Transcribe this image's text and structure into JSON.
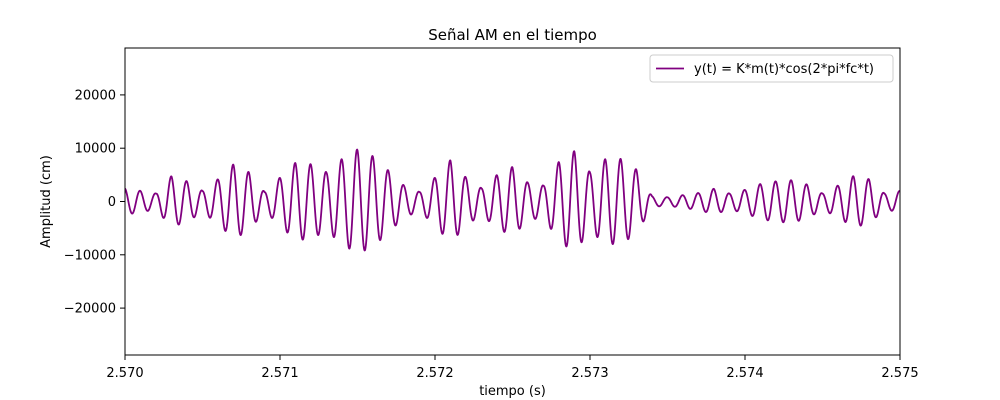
{
  "chart_data": {
    "type": "line",
    "title": "Señal AM en el tiempo",
    "xlabel": "tiempo (s)",
    "ylabel": "Amplitud (cm)",
    "xlim": [
      2.57,
      2.575
    ],
    "ylim": [
      -28800,
      28800
    ],
    "xticks": [
      "2.570",
      "2.571",
      "2.572",
      "2.573",
      "2.574",
      "2.575"
    ],
    "yticks": [
      "−20000",
      "−10000",
      "0",
      "10000",
      "20000"
    ],
    "ytick_values": [
      -20000,
      -10000,
      0,
      10000,
      20000
    ],
    "grid": false,
    "legend_position": "top-right",
    "series": [
      {
        "name": "y(t) = K*m(t)*cos(2*pi*fc*t)",
        "color": "#800080",
        "carrier_cycles_per_ms": 10,
        "envelope": {
          "x": [
            2.57,
            2.5702,
            2.5703,
            2.5704,
            2.5705,
            2.5706,
            2.5707,
            2.5708,
            2.5709,
            2.571,
            2.5711,
            2.5712,
            2.5713,
            2.5714,
            2.5715,
            2.5716,
            2.5717,
            2.5718,
            2.5719,
            2.572,
            2.5721,
            2.5722,
            2.5723,
            2.5724,
            2.5725,
            2.5726,
            2.5727,
            2.5728,
            2.5729,
            2.573,
            2.5731,
            2.5732,
            2.5733,
            2.5734,
            2.5735,
            2.5736,
            2.5737,
            2.5738,
            2.5739,
            2.574,
            2.5741,
            2.5742,
            2.5743,
            2.5744,
            2.5745,
            2.5746,
            2.5747,
            2.5748,
            2.5749,
            2.575
          ],
          "y": [
            2500,
            1500,
            4800,
            3800,
            2000,
            4200,
            7000,
            5500,
            1800,
            4500,
            7300,
            7000,
            5500,
            8000,
            9800,
            8500,
            5800,
            3000,
            1800,
            4500,
            7800,
            4500,
            2500,
            5000,
            6500,
            3500,
            3000,
            7500,
            9500,
            5500,
            8000,
            8000,
            6000,
            1000,
            800,
            1200,
            1600,
            2400,
            1500,
            2200,
            3300,
            3800,
            4000,
            3200,
            1500,
            3000,
            4800,
            4200,
            1500,
            2000
          ]
        }
      }
    ]
  }
}
